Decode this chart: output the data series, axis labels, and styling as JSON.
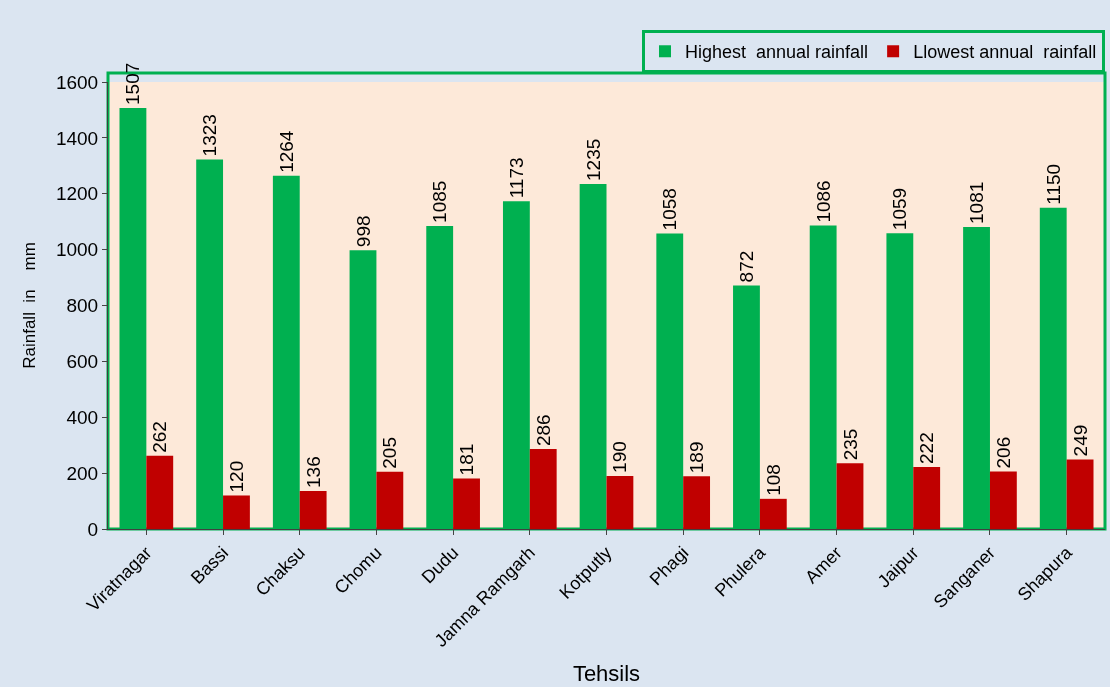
{
  "chart_data": {
    "type": "bar",
    "xlabel": "Tehsils",
    "ylabel": "Rainfall  in    mm",
    "categories": [
      "Viratnagar",
      "Bassi",
      "Chaksu",
      "Chomu",
      "Dudu",
      "Jamna Ramgarh",
      "Kotputly",
      "Phagi",
      "Phulera",
      "Amer",
      "Jaipur",
      "Sanganer",
      "Shapura"
    ],
    "series": [
      {
        "name": "Highest  annual rainfall",
        "color": "#00b050",
        "values": [
          1507,
          1323,
          1264,
          998,
          1085,
          1173,
          1235,
          1058,
          872,
          1086,
          1059,
          1081,
          1150
        ]
      },
      {
        "name": "Llowest annual  rainfall",
        "color": "#c00000",
        "values": [
          262,
          120,
          136,
          205,
          181,
          286,
          190,
          189,
          108,
          235,
          222,
          206,
          249
        ]
      }
    ],
    "ylim": [
      0,
      1600
    ],
    "yticks": [
      0,
      200,
      400,
      600,
      800,
      1000,
      1200,
      1400,
      1600
    ],
    "data_labels": true,
    "legend": "top right",
    "grid": false
  }
}
